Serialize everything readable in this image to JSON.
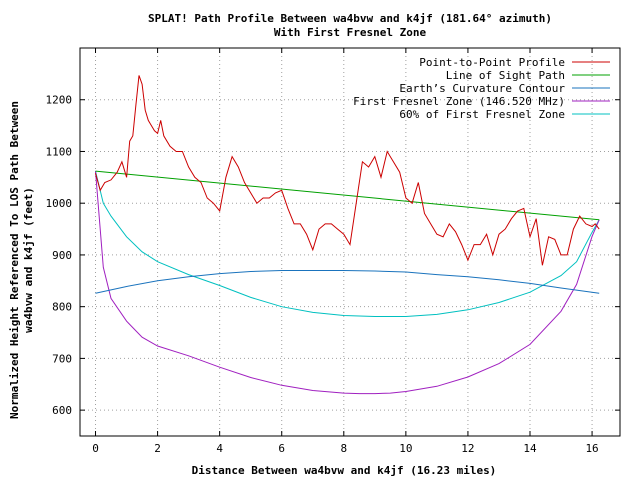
{
  "chart_data": {
    "type": "line",
    "title": "SPLAT! Path Profile Between wa4bvw and k4jf (181.64° azimuth)",
    "subtitle": "With First Fresnel Zone",
    "xlabel": "Distance Between wa4bvw and k4jf (16.23 miles)",
    "ylabel_line1": "Normalized Height Referenced To LOS Path Between",
    "ylabel_line2": "wa4bvw and k4jf (feet)",
    "xlim": [
      -0.5,
      16.9
    ],
    "ylim": [
      550,
      1300
    ],
    "xticks": [
      0,
      2,
      4,
      6,
      8,
      10,
      12,
      14,
      16
    ],
    "yticks": [
      600,
      700,
      800,
      900,
      1000,
      1100,
      1200
    ],
    "grid": true,
    "legend_position": "top-right",
    "series": [
      {
        "name": "Point-to-Point Profile",
        "color": "#cc0000",
        "x": [
          0,
          0.15,
          0.3,
          0.5,
          0.7,
          0.85,
          1.0,
          1.1,
          1.2,
          1.3,
          1.4,
          1.5,
          1.6,
          1.7,
          1.8,
          1.9,
          2.0,
          2.1,
          2.2,
          2.4,
          2.6,
          2.8,
          3.0,
          3.2,
          3.4,
          3.6,
          3.8,
          4.0,
          4.2,
          4.4,
          4.6,
          4.8,
          5.0,
          5.2,
          5.4,
          5.6,
          5.8,
          6.0,
          6.2,
          6.4,
          6.6,
          6.8,
          7.0,
          7.2,
          7.4,
          7.6,
          7.8,
          8.0,
          8.2,
          8.4,
          8.6,
          8.8,
          9.0,
          9.2,
          9.4,
          9.6,
          9.8,
          10.0,
          10.2,
          10.4,
          10.6,
          10.8,
          11.0,
          11.2,
          11.4,
          11.6,
          11.8,
          12.0,
          12.2,
          12.4,
          12.6,
          12.8,
          13.0,
          13.2,
          13.4,
          13.6,
          13.8,
          14.0,
          14.2,
          14.4,
          14.6,
          14.8,
          15.0,
          15.2,
          15.4,
          15.6,
          15.8,
          16.0,
          16.1,
          16.23
        ],
        "values": [
          1058,
          1025,
          1040,
          1045,
          1060,
          1080,
          1050,
          1120,
          1130,
          1190,
          1247,
          1230,
          1180,
          1160,
          1150,
          1140,
          1135,
          1160,
          1130,
          1110,
          1100,
          1100,
          1070,
          1050,
          1040,
          1010,
          1000,
          985,
          1050,
          1090,
          1070,
          1040,
          1020,
          1000,
          1010,
          1010,
          1020,
          1025,
          990,
          960,
          960,
          940,
          910,
          950,
          960,
          960,
          950,
          940,
          920,
          1000,
          1080,
          1070,
          1090,
          1050,
          1100,
          1080,
          1060,
          1010,
          1000,
          1040,
          980,
          960,
          940,
          935,
          960,
          945,
          920,
          890,
          920,
          920,
          940,
          900,
          940,
          950,
          970,
          985,
          990,
          935,
          970,
          880,
          935,
          930,
          900,
          900,
          950,
          975,
          960,
          955,
          960,
          950
        ]
      },
      {
        "name": "Line of Sight Path",
        "color": "#00a000",
        "x": [
          0,
          16.23
        ],
        "values": [
          1062,
          968
        ]
      },
      {
        "name": "Earth’s Curvature Contour",
        "color": "#1a73bd",
        "x": [
          0,
          1,
          2,
          3,
          4,
          5,
          6,
          7,
          8,
          9,
          10,
          11,
          12,
          13,
          14,
          15,
          16.23
        ],
        "values": [
          826,
          839,
          850,
          858,
          864,
          868,
          870,
          870,
          870,
          869,
          867,
          862,
          858,
          852,
          845,
          836,
          826
        ]
      },
      {
        "name": "First Fresnel Zone (146.520 MHz)",
        "color": "#a020c0",
        "x": [
          0,
          0.25,
          0.5,
          1,
          1.5,
          2,
          3,
          4,
          5,
          6,
          7,
          8,
          8.5,
          9,
          9.5,
          10,
          11,
          12,
          13,
          14,
          15,
          15.5,
          16,
          16.23
        ],
        "values": [
          1062,
          876,
          816,
          772,
          741,
          724,
          705,
          683,
          663,
          648,
          638,
          633,
          632,
          632,
          633,
          636,
          646,
          664,
          690,
          727,
          791,
          843,
          936,
          968
        ]
      },
      {
        "name": "60% of First Fresnel Zone",
        "color": "#00c0c0",
        "x": [
          0,
          0.25,
          0.5,
          1,
          1.5,
          2,
          3,
          4,
          5,
          6,
          7,
          8,
          9,
          10,
          11,
          12,
          13,
          14,
          15,
          15.5,
          16,
          16.23
        ],
        "values": [
          1062,
          1000,
          975,
          935,
          906,
          887,
          862,
          841,
          818,
          800,
          789,
          783,
          781,
          781,
          785,
          794,
          808,
          828,
          860,
          887,
          944,
          968
        ]
      }
    ]
  }
}
